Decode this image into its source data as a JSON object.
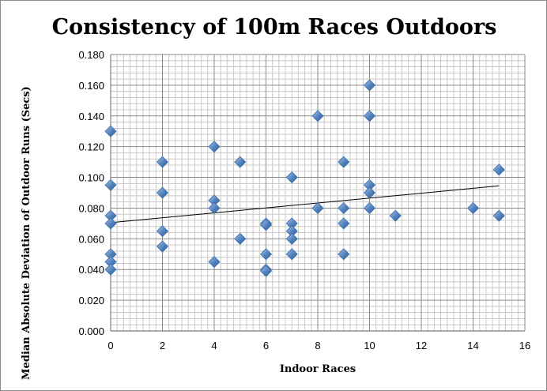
{
  "chart_data": {
    "type": "scatter",
    "title": "Consistency of 100m Races Outdoors",
    "xlabel": "Indoor Races",
    "ylabel": "Median Absolute Deviation of Outdoor Runs (Secs)",
    "xlim": [
      0,
      16
    ],
    "ylim": [
      0,
      0.18
    ],
    "x_ticks": [
      "0",
      "2",
      "4",
      "6",
      "8",
      "10",
      "12",
      "14",
      "16"
    ],
    "y_ticks": [
      "0.000",
      "0.020",
      "0.040",
      "0.060",
      "0.080",
      "0.100",
      "0.120",
      "0.140",
      "0.160",
      "0.180"
    ],
    "grid": true,
    "marker_color": "#4f81bd",
    "trendline": {
      "type": "linear",
      "x": [
        0,
        15
      ],
      "y": [
        0.0705,
        0.0945
      ]
    },
    "points": [
      {
        "x": 0,
        "y": 0.13
      },
      {
        "x": 0,
        "y": 0.095
      },
      {
        "x": 0,
        "y": 0.075
      },
      {
        "x": 0,
        "y": 0.07
      },
      {
        "x": 0,
        "y": 0.05
      },
      {
        "x": 0,
        "y": 0.045
      },
      {
        "x": 0,
        "y": 0.04
      },
      {
        "x": 2,
        "y": 0.11
      },
      {
        "x": 2,
        "y": 0.09
      },
      {
        "x": 2,
        "y": 0.065
      },
      {
        "x": 2,
        "y": 0.055
      },
      {
        "x": 4,
        "y": 0.12
      },
      {
        "x": 4,
        "y": 0.085
      },
      {
        "x": 4,
        "y": 0.08
      },
      {
        "x": 4,
        "y": 0.045
      },
      {
        "x": 5,
        "y": 0.11
      },
      {
        "x": 5,
        "y": 0.06
      },
      {
        "x": 6,
        "y": 0.07
      },
      {
        "x": 6,
        "y": 0.069
      },
      {
        "x": 6,
        "y": 0.05
      },
      {
        "x": 6,
        "y": 0.04
      },
      {
        "x": 6,
        "y": 0.039
      },
      {
        "x": 7,
        "y": 0.1
      },
      {
        "x": 7,
        "y": 0.07
      },
      {
        "x": 7,
        "y": 0.065
      },
      {
        "x": 7,
        "y": 0.06
      },
      {
        "x": 7,
        "y": 0.05
      },
      {
        "x": 8,
        "y": 0.14
      },
      {
        "x": 8,
        "y": 0.08
      },
      {
        "x": 9,
        "y": 0.11
      },
      {
        "x": 9,
        "y": 0.08
      },
      {
        "x": 9,
        "y": 0.07
      },
      {
        "x": 9,
        "y": 0.05
      },
      {
        "x": 10,
        "y": 0.16
      },
      {
        "x": 10,
        "y": 0.14
      },
      {
        "x": 10,
        "y": 0.095
      },
      {
        "x": 10,
        "y": 0.09
      },
      {
        "x": 10,
        "y": 0.08
      },
      {
        "x": 11,
        "y": 0.075
      },
      {
        "x": 14,
        "y": 0.08
      },
      {
        "x": 15,
        "y": 0.105
      },
      {
        "x": 15,
        "y": 0.075
      }
    ]
  }
}
